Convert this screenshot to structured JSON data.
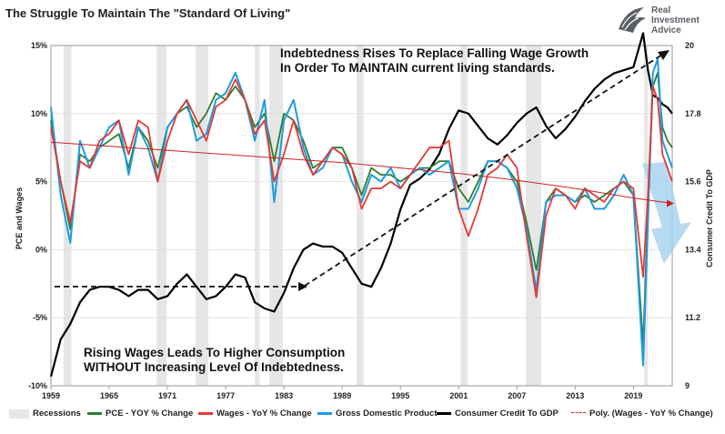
{
  "title": "The Struggle To Maintain The \"Standard Of Living\"",
  "brand": {
    "line1": "Real",
    "line2": "Investment",
    "line3": "Advice"
  },
  "annotations": {
    "top_line1": "Indebtedness Rises To Replace Falling Wage Growth",
    "top_line2": "In Order To MAINTAIN current living standards.",
    "bottom_line1": "Rising Wages Leads To Higher Consumption",
    "bottom_line2": "WITHOUT Increasing Level Of Indebtedness."
  },
  "colors": {
    "pce": "#2e7d32",
    "wages": "#e53935",
    "gdp": "#1e9be0",
    "credit": "#000000",
    "poly": "#cc2222",
    "recession": "#e6e6e6",
    "arrow": "#a9d3ee"
  },
  "chart_data": {
    "type": "line",
    "title": "The Struggle To Maintain The \"Standard Of Living\"",
    "xlabel": "",
    "ylabel_left": "PCE and Wages",
    "ylabel_right": "Consumer Credit To GDP",
    "xlim": [
      1959,
      2023
    ],
    "ylim_left": [
      -10,
      15
    ],
    "ylim_right": [
      9,
      20
    ],
    "x_ticks": [
      "1959",
      "1965",
      "1971",
      "1977",
      "1983",
      "1989",
      "1995",
      "2001",
      "2007",
      "2013",
      "2019"
    ],
    "y_left_ticks": [
      "15%",
      "10%",
      "5%",
      "0%",
      "-5%",
      "-10%"
    ],
    "y_right_ticks": [
      "20",
      "17.8",
      "15.6",
      "13.4",
      "11.2",
      "9"
    ],
    "grid": true,
    "legend_position": "bottom",
    "recessions": [
      [
        1960.3,
        1961.1
      ],
      [
        1969.9,
        1970.9
      ],
      [
        1973.9,
        1975.2
      ],
      [
        1980.0,
        1980.5
      ],
      [
        1981.5,
        1982.9
      ],
      [
        1990.5,
        1991.2
      ],
      [
        2001.2,
        2001.9
      ],
      [
        2007.9,
        2009.5
      ],
      [
        2020.1,
        2020.5
      ]
    ],
    "legend": [
      "Recessions",
      "PCE - YOY % Change",
      "Wages - YoY % Change",
      "Gross Domestic Product",
      "Consumer Credit To GDP",
      "Poly. (Wages - YoY % Change)"
    ],
    "series": [
      {
        "name": "PCE - YOY % Change",
        "axis": "left",
        "x": [
          1959,
          1960,
          1961,
          1962,
          1963,
          1964,
          1965,
          1966,
          1967,
          1968,
          1969,
          1970,
          1971,
          1972,
          1973,
          1974,
          1975,
          1976,
          1977,
          1978,
          1979,
          1980,
          1981,
          1982,
          1983,
          1984,
          1985,
          1986,
          1987,
          1988,
          1989,
          1990,
          1991,
          1992,
          1993,
          1994,
          1995,
          1996,
          1997,
          1998,
          1999,
          2000,
          2001,
          2002,
          2003,
          2004,
          2005,
          2006,
          2007,
          2008,
          2009,
          2010,
          2011,
          2012,
          2013,
          2014,
          2015,
          2016,
          2017,
          2018,
          2019,
          2020,
          2020.5,
          2021,
          2021.5,
          2022,
          2022.5,
          2023
        ],
        "y": [
          9.5,
          5,
          1.5,
          7,
          6.5,
          7.5,
          8,
          8.5,
          6,
          9,
          8,
          6,
          9,
          10,
          10.5,
          9,
          10,
          11.5,
          11,
          12,
          11,
          9,
          10,
          6.5,
          10,
          9.5,
          8,
          6,
          6.5,
          7.5,
          7.5,
          6,
          4,
          6,
          5.5,
          5.5,
          5,
          5.5,
          6,
          6,
          6.5,
          6.5,
          4.5,
          3.5,
          5,
          6.5,
          6.5,
          6,
          5,
          2,
          -1.5,
          3.5,
          4.5,
          4,
          3.5,
          4,
          3.5,
          4,
          4.5,
          5,
          4,
          -7,
          3,
          12,
          13,
          9,
          8,
          7.5
        ]
      },
      {
        "name": "Wages - YoY % Change",
        "axis": "left",
        "x": [
          1959,
          1960,
          1961,
          1962,
          1963,
          1964,
          1965,
          1966,
          1967,
          1968,
          1969,
          1970,
          1971,
          1972,
          1973,
          1974,
          1975,
          1976,
          1977,
          1978,
          1979,
          1980,
          1981,
          1982,
          1983,
          1984,
          1985,
          1986,
          1987,
          1988,
          1989,
          1990,
          1991,
          1992,
          1993,
          1994,
          1995,
          1996,
          1997,
          1998,
          1999,
          2000,
          2001,
          2002,
          2003,
          2004,
          2005,
          2006,
          2007,
          2008,
          2009,
          2010,
          2011,
          2012,
          2013,
          2014,
          2015,
          2016,
          2017,
          2018,
          2019,
          2020,
          2020.5,
          2021,
          2021.5,
          2022,
          2022.5,
          2023
        ],
        "y": [
          9,
          5,
          2,
          6.5,
          6,
          8,
          8.5,
          9.5,
          7,
          9.5,
          9,
          5,
          8,
          10,
          11,
          9.5,
          8,
          10.5,
          11,
          12.5,
          11,
          8.5,
          9.5,
          5,
          7,
          9.5,
          7,
          5.5,
          6.5,
          7.5,
          7,
          6,
          3,
          4.5,
          4.5,
          5,
          4.5,
          5.5,
          6.5,
          7.5,
          7.5,
          8,
          3,
          1,
          3,
          5.5,
          6,
          7,
          6,
          1,
          -3.5,
          2.5,
          4.5,
          4,
          3,
          4.5,
          4,
          3.5,
          4.5,
          5,
          4.5,
          -2,
          4,
          12,
          11,
          7,
          6,
          5
        ]
      },
      {
        "name": "Gross Domestic Product",
        "axis": "left",
        "x": [
          1959,
          1960,
          1961,
          1962,
          1963,
          1964,
          1965,
          1966,
          1967,
          1968,
          1969,
          1970,
          1971,
          1972,
          1973,
          1974,
          1975,
          1976,
          1977,
          1978,
          1979,
          1980,
          1981,
          1982,
          1983,
          1984,
          1985,
          1986,
          1987,
          1988,
          1989,
          1990,
          1991,
          1992,
          1993,
          1994,
          1995,
          1996,
          1997,
          1998,
          1999,
          2000,
          2001,
          2002,
          2003,
          2004,
          2005,
          2006,
          2007,
          2008,
          2009,
          2010,
          2011,
          2012,
          2013,
          2014,
          2015,
          2016,
          2017,
          2018,
          2019,
          2020,
          2020.5,
          2021,
          2021.5,
          2022,
          2022.5,
          2023
        ],
        "y": [
          10.5,
          4,
          0.5,
          8,
          6,
          7.5,
          9,
          9.5,
          5.5,
          9,
          7.5,
          5,
          9,
          10,
          11,
          8,
          8.5,
          11,
          11.5,
          13,
          11,
          8,
          11,
          3.5,
          9.5,
          11,
          7.5,
          5.5,
          6,
          7.5,
          7,
          5,
          3.5,
          5.5,
          5,
          6,
          4.5,
          5.5,
          6,
          5.5,
          6,
          6.5,
          3,
          3,
          4.5,
          6.5,
          6.5,
          6,
          4.5,
          1.5,
          -3,
          3.5,
          4,
          4,
          3.5,
          4.5,
          3,
          3,
          4,
          5.5,
          4,
          -8.5,
          2,
          13,
          14,
          8,
          7,
          6
        ]
      },
      {
        "name": "Consumer Credit To GDP",
        "axis": "right",
        "x": [
          1959,
          1960,
          1961,
          1962,
          1963,
          1964,
          1965,
          1966,
          1967,
          1968,
          1969,
          1970,
          1971,
          1972,
          1973,
          1974,
          1975,
          1976,
          1977,
          1978,
          1979,
          1980,
          1981,
          1982,
          1983,
          1984,
          1985,
          1986,
          1987,
          1988,
          1989,
          1990,
          1991,
          1992,
          1993,
          1994,
          1995,
          1996,
          1997,
          1998,
          1999,
          2000,
          2001,
          2002,
          2003,
          2004,
          2005,
          2006,
          2007,
          2008,
          2009,
          2010,
          2011,
          2012,
          2013,
          2014,
          2015,
          2016,
          2017,
          2018,
          2019,
          2020,
          2020.5,
          2021,
          2021.5,
          2022,
          2022.5,
          2023
        ],
        "y": [
          9.3,
          10.5,
          11,
          11.7,
          12.1,
          12.2,
          12.2,
          12.1,
          11.9,
          12.1,
          12.1,
          11.8,
          11.9,
          12.3,
          12.6,
          12.2,
          11.8,
          11.9,
          12.2,
          12.6,
          12.5,
          11.7,
          11.5,
          11.4,
          12.0,
          12.8,
          13.4,
          13.6,
          13.5,
          13.5,
          13.3,
          12.8,
          12.3,
          12.2,
          12.8,
          13.6,
          14.7,
          15.5,
          15.7,
          16.0,
          16.5,
          17.3,
          17.9,
          17.8,
          17.4,
          17.0,
          16.8,
          17.1,
          17.5,
          17.8,
          18.0,
          17.4,
          17.0,
          17.3,
          17.7,
          18.2,
          18.6,
          18.9,
          19.1,
          19.2,
          19.3,
          20.4,
          19.2,
          18.4,
          18.3,
          18.1,
          18.0,
          17.8
        ]
      },
      {
        "name": "Poly. (Wages - YoY % Change)",
        "axis": "left",
        "x": [
          1959,
          1965,
          1971,
          1977,
          1983,
          1989,
          1995,
          2001,
          2007,
          2013,
          2019,
          2023
        ],
        "y": [
          7.9,
          7.6,
          7.3,
          7.0,
          6.7,
          6.4,
          6.0,
          5.6,
          5.1,
          4.5,
          3.8,
          3.4
        ]
      }
    ]
  }
}
